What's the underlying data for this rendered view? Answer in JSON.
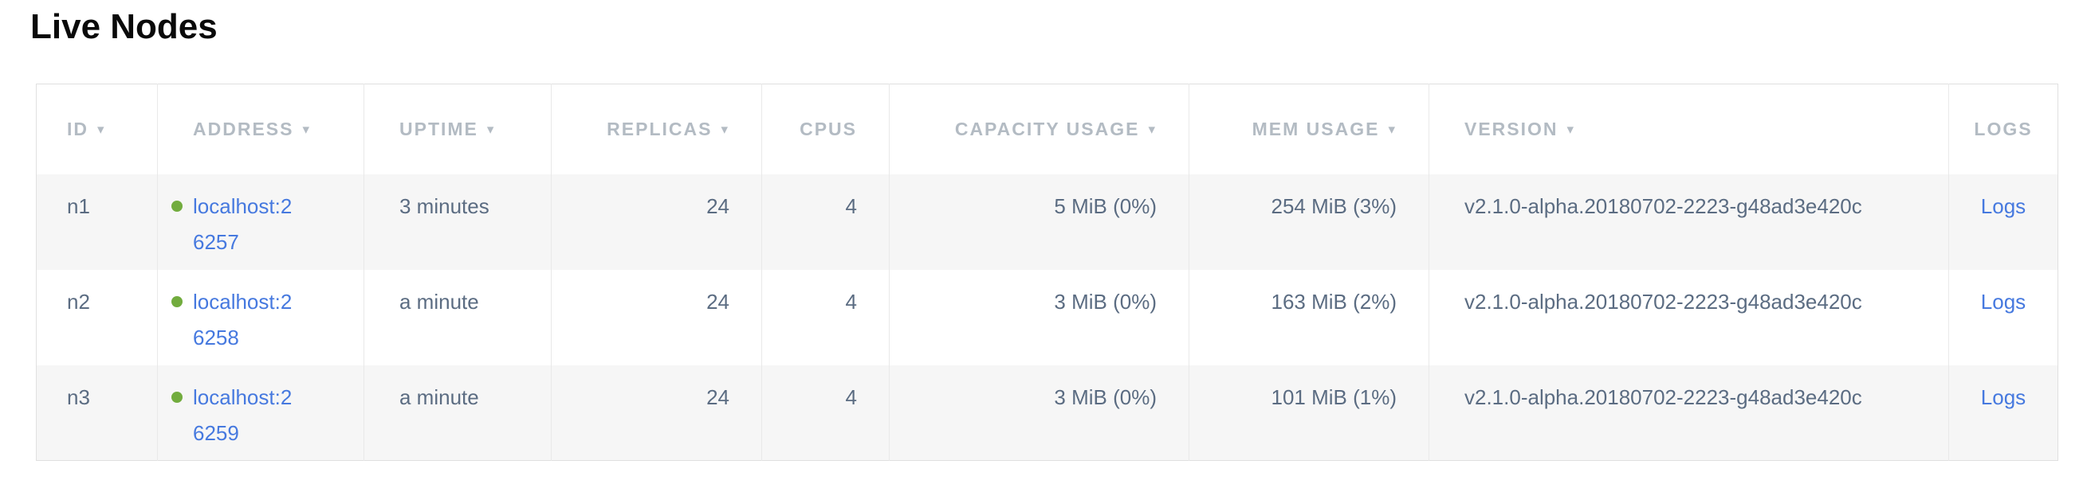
{
  "page": {
    "title": "Live Nodes"
  },
  "colors": {
    "link": "#4679df",
    "status_dot": "#72ac3e",
    "header_text": "#b3bbc3",
    "cell_text": "#5b6c82",
    "row_alt_bg": "#f6f6f6",
    "border_outer": "#e0e0e0",
    "border_inner": "#e9e9e9",
    "title_text": "#0a0a0a"
  },
  "table": {
    "sort_arrow": "▾",
    "columns": [
      {
        "key": "id",
        "label": "ID",
        "sortable": true,
        "align": "left"
      },
      {
        "key": "address",
        "label": "ADDRESS",
        "sortable": true,
        "align": "left"
      },
      {
        "key": "uptime",
        "label": "UPTIME",
        "sortable": true,
        "align": "left"
      },
      {
        "key": "replicas",
        "label": "REPLICAS",
        "sortable": true,
        "align": "right"
      },
      {
        "key": "cpus",
        "label": "CPUS",
        "sortable": false,
        "align": "right"
      },
      {
        "key": "capacity_usage",
        "label": "CAPACITY USAGE",
        "sortable": true,
        "align": "right"
      },
      {
        "key": "mem_usage",
        "label": "MEM USAGE",
        "sortable": true,
        "align": "right"
      },
      {
        "key": "version",
        "label": "VERSION",
        "sortable": true,
        "align": "left"
      },
      {
        "key": "logs",
        "label": "LOGS",
        "sortable": false,
        "align": "center"
      }
    ],
    "rows": [
      {
        "id": "n1",
        "address": "localhost:26257",
        "uptime": "3 minutes",
        "replicas": "24",
        "cpus": "4",
        "capacity_usage": "5 MiB (0%)",
        "mem_usage": "254 MiB (3%)",
        "version": "v2.1.0-alpha.20180702-2223-g48ad3e420c",
        "logs_label": "Logs"
      },
      {
        "id": "n2",
        "address": "localhost:26258",
        "uptime": "a minute",
        "replicas": "24",
        "cpus": "4",
        "capacity_usage": "3 MiB (0%)",
        "mem_usage": "163 MiB (2%)",
        "version": "v2.1.0-alpha.20180702-2223-g48ad3e420c",
        "logs_label": "Logs"
      },
      {
        "id": "n3",
        "address": "localhost:26259",
        "uptime": "a minute",
        "replicas": "24",
        "cpus": "4",
        "capacity_usage": "3 MiB (0%)",
        "mem_usage": "101 MiB (1%)",
        "version": "v2.1.0-alpha.20180702-2223-g48ad3e420c",
        "logs_label": "Logs"
      }
    ]
  }
}
